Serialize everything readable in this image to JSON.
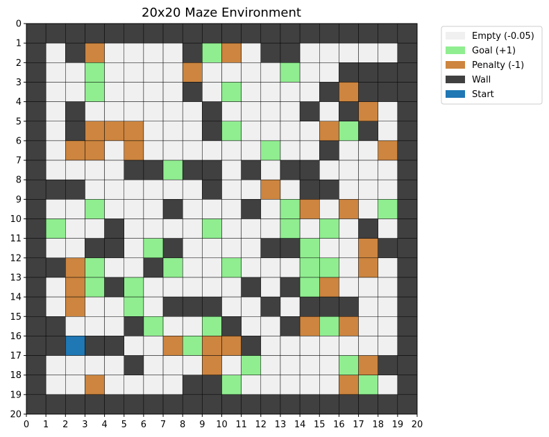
{
  "chart_data": {
    "type": "heatmap",
    "title": "20x20 Maze Environment",
    "xlim": [
      0,
      20
    ],
    "ylim": [
      20,
      0
    ],
    "x_ticks": [
      "0",
      "1",
      "2",
      "3",
      "4",
      "5",
      "6",
      "7",
      "8",
      "9",
      "10",
      "11",
      "12",
      "13",
      "14",
      "15",
      "16",
      "17",
      "18",
      "19",
      "20"
    ],
    "y_ticks": [
      "0",
      "1",
      "2",
      "3",
      "4",
      "5",
      "6",
      "7",
      "8",
      "9",
      "10",
      "11",
      "12",
      "13",
      "14",
      "15",
      "16",
      "17",
      "18",
      "19",
      "20"
    ],
    "grid": true,
    "legend_position": "outside-top-right",
    "legend": [
      {
        "key": "E",
        "label": "Empty (-0.05)",
        "color": "#f0f0f0"
      },
      {
        "key": "G",
        "label": "Goal (+1)",
        "color": "#90ee90"
      },
      {
        "key": "P",
        "label": "Penalty (-1)",
        "color": "#cd853f"
      },
      {
        "key": "W",
        "label": "Wall",
        "color": "#404040"
      },
      {
        "key": "S",
        "label": "Start",
        "color": "#1f77b4"
      }
    ],
    "grid_rows": [
      "WWWWWWWWWWWWWWWWWWWW",
      "WEWPEEEEWGPEWWEEEEEW",
      "WEEGEEEEPEEEEGEEWWWW",
      "WEEGEEEEWEGEEEEWPWWW",
      "WEWEEEEEEWEEEEWEWPEW",
      "WEWPPPEEEWGEEEEPGWEW",
      "WEPPEPEEEEEEGEEWEEPW",
      "WEEEEWWGWWEWEWWEEEEW",
      "WWWEEEEEEWEEPEWWEEEW",
      "WEEGEEEWEEEWEGPEPEGW",
      "WGEEWEEEEGEEEGEGEWEW",
      "WEEWWEGWEEEEWWGEEPWW",
      "WWPGEEWGEEGEEEGGEPEW",
      "WEPGWGEEEEEWEWGPEEEW",
      "WEPEEGEWWWEEWEWWWEEW",
      "WWEEEWGEEGWEEWPGPEEW",
      "WWSWWEEPGPPWEEEEEEEW",
      "WEEEEWEEEPEGEEEEGPWW",
      "WEEPEEEEWWGEEEEEPGEW",
      "WWWWWWWWWWWWWWWWWWWW"
    ]
  }
}
